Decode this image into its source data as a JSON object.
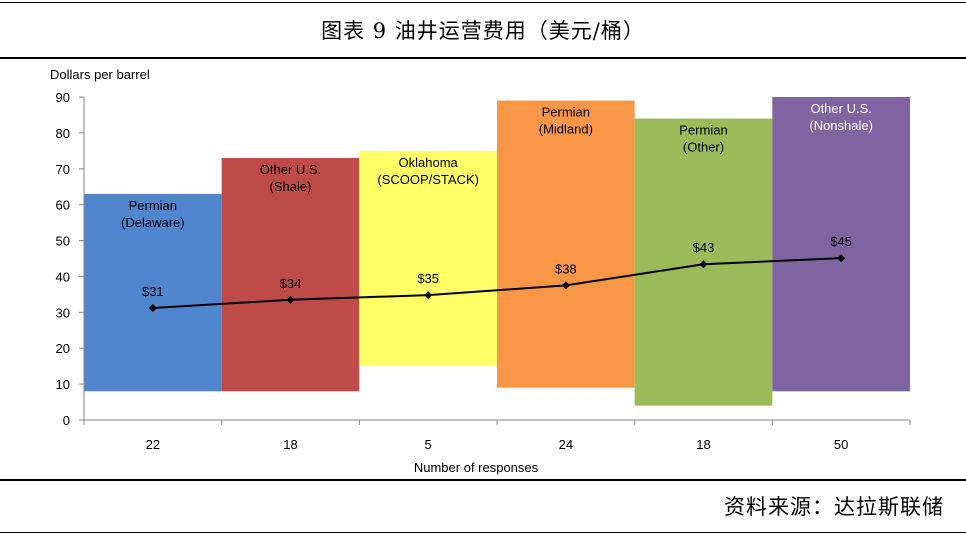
{
  "header": {
    "title": "图表 9   油井运营费用（美元/桶）"
  },
  "footer": {
    "source": "资料来源：达拉斯联储"
  },
  "chart_data": {
    "type": "bar",
    "title": "图表 9   油井运营费用（美元/桶）",
    "ylabel": "Dollars per barrel",
    "xlabel": "Number of responses",
    "ylim": [
      0,
      90
    ],
    "yticks": [
      0,
      10,
      20,
      30,
      40,
      50,
      60,
      70,
      80,
      90
    ],
    "grid": false,
    "categories": [
      "Permian\n(Delaware)",
      "Other U.S.\n(Shale)",
      "Oklahoma\n(SCOOP/STACK)",
      "Permian\n(Midland)",
      "Permian\n(Other)",
      "Other U.S.\n(Nonshale)"
    ],
    "responses": [
      22,
      18,
      5,
      24,
      18,
      50
    ],
    "ranges": [
      {
        "low": 8,
        "high": 63,
        "color": "#4f86cd"
      },
      {
        "low": 8,
        "high": 73,
        "color": "#be4b48"
      },
      {
        "low": 15,
        "high": 75,
        "color": "#ffff66"
      },
      {
        "low": 9,
        "high": 89,
        "color": "#f79646"
      },
      {
        "low": 4,
        "high": 84,
        "color": "#9bbb59"
      },
      {
        "low": 8,
        "high": 90,
        "color": "#8064a2"
      }
    ],
    "label_colors": [
      "#000000",
      "#000000",
      "#000000",
      "#000000",
      "#000000",
      "#ffffff"
    ],
    "average": {
      "values": [
        31.2,
        33.5,
        34.8,
        37.5,
        43.4,
        45.1
      ],
      "labels": [
        "$31",
        "$34",
        "$35",
        "$38",
        "$43",
        "$45"
      ],
      "color": "#000000"
    }
  }
}
